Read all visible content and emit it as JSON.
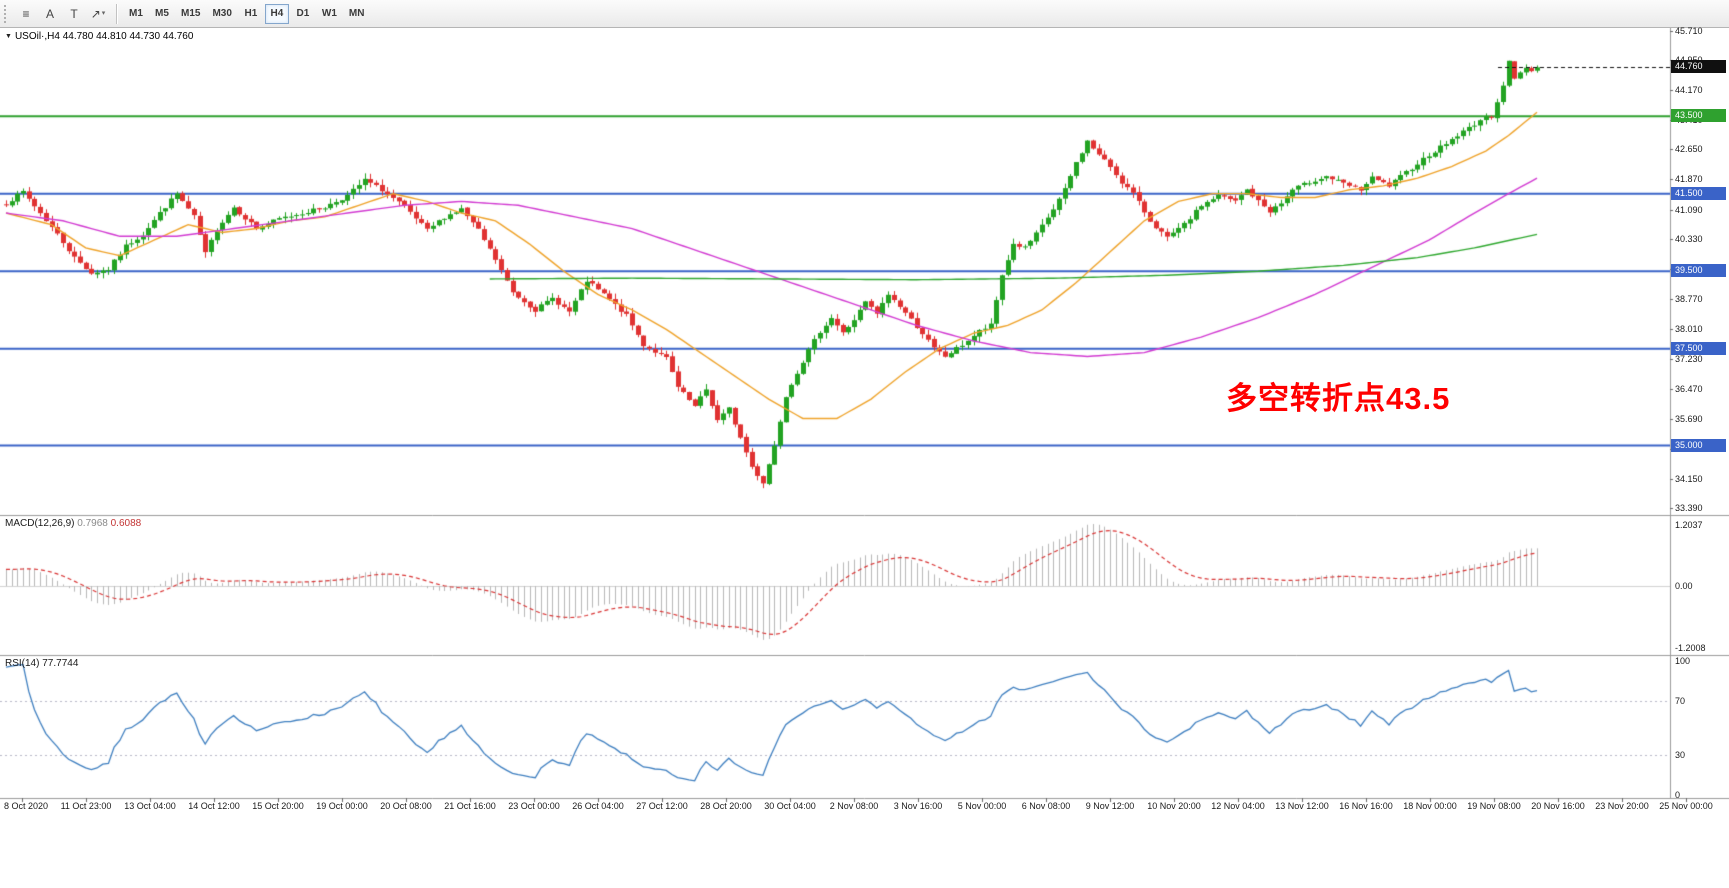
{
  "toolbar": {
    "tools": [
      {
        "id": "fibonacci-retracement",
        "glyph": "≡",
        "dropdown": false
      },
      {
        "id": "text-label",
        "glyph": "A",
        "dropdown": false
      },
      {
        "id": "text-box",
        "glyph": "T",
        "dropdown": false
      },
      {
        "id": "arrow-tool",
        "glyph": "↗",
        "dropdown": true
      }
    ],
    "timeframes": [
      "M1",
      "M5",
      "M15",
      "M30",
      "H1",
      "H4",
      "D1",
      "W1",
      "MN"
    ],
    "active_timeframe": "H4"
  },
  "chart": {
    "header": "USOil·,H4 44.780 44.810 44.730 44.760",
    "symbol": "USOil",
    "period": "H4",
    "ohlc": {
      "open": "44.780",
      "high": "44.810",
      "low": "44.730",
      "close": "44.760"
    },
    "annotation": {
      "text": "多空转折点43.5"
    },
    "current_price": {
      "value": 44.76,
      "label": "44.760"
    },
    "levels": [
      {
        "price": 43.5,
        "label": "43.500",
        "color": "#2fa12f"
      },
      {
        "price": 41.5,
        "label": "41.500",
        "color": "#3a63c8"
      },
      {
        "price": 39.5,
        "label": "39.500",
        "color": "#3a63c8"
      },
      {
        "price": 37.5,
        "label": "37.500",
        "color": "#3a63c8"
      },
      {
        "price": 35.0,
        "label": "35.000",
        "color": "#3a63c8"
      }
    ]
  },
  "macd": {
    "label": "MACD(12,26,9)",
    "value_main": "0.7968",
    "value_signal": "0.6088",
    "axis": [
      "1.2037",
      "0.00",
      "-1.2008"
    ]
  },
  "rsi": {
    "label": "RSI(14)",
    "value": "77.7744",
    "axis": [
      {
        "label": "100",
        "value": 100
      },
      {
        "label": "70",
        "value": 70
      },
      {
        "label": "30",
        "value": 30
      },
      {
        "label": "0",
        "value": 0
      }
    ],
    "levels": [
      70,
      30
    ]
  },
  "chart_data": {
    "type": "candlestick",
    "symbol": "USOil",
    "timeframe": "H4",
    "bars": 270,
    "y_range": [
      33.39,
      45.71
    ],
    "y_ticks": [
      "45.710",
      "44.950",
      "44.170",
      "43.410",
      "42.650",
      "41.870",
      "41.090",
      "40.330",
      "39.550",
      "38.770",
      "38.010",
      "37.230",
      "36.470",
      "35.690",
      "34.920",
      "34.150",
      "33.390"
    ],
    "time_labels": [
      "8 Oct 2020",
      "11 Oct 23:00",
      "13 Oct 04:00",
      "14 Oct 12:00",
      "15 Oct 20:00",
      "19 Oct 00:00",
      "20 Oct 08:00",
      "21 Oct 16:00",
      "23 Oct 00:00",
      "26 Oct 04:00",
      "27 Oct 12:00",
      "28 Oct 20:00",
      "30 Oct 04:00",
      "2 Nov 08:00",
      "3 Nov 16:00",
      "5 Nov 00:00",
      "6 Nov 08:00",
      "9 Nov 12:00",
      "10 Nov 20:00",
      "12 Nov 04:00",
      "13 Nov 12:00",
      "16 Nov 16:00",
      "18 Nov 00:00",
      "19 Nov 08:00",
      "20 Nov 16:00",
      "23 Nov 20:00",
      "25 Nov 00:00"
    ],
    "close_path": [
      [
        0,
        41.25
      ],
      [
        3,
        41.55
      ],
      [
        6,
        41.0
      ],
      [
        9,
        40.45
      ],
      [
        12,
        39.85
      ],
      [
        15,
        39.45
      ],
      [
        18,
        39.55
      ],
      [
        21,
        40.15
      ],
      [
        24,
        40.45
      ],
      [
        27,
        41.0
      ],
      [
        30,
        41.5
      ],
      [
        33,
        40.9
      ],
      [
        35,
        39.95
      ],
      [
        37,
        40.6
      ],
      [
        40,
        41.15
      ],
      [
        44,
        40.6
      ],
      [
        48,
        40.85
      ],
      [
        52,
        41.0
      ],
      [
        56,
        41.15
      ],
      [
        60,
        41.45
      ],
      [
        63,
        41.85
      ],
      [
        66,
        41.6
      ],
      [
        70,
        41.15
      ],
      [
        74,
        40.55
      ],
      [
        77,
        40.9
      ],
      [
        80,
        41.1
      ],
      [
        83,
        40.55
      ],
      [
        86,
        39.8
      ],
      [
        89,
        38.95
      ],
      [
        93,
        38.5
      ],
      [
        96,
        38.8
      ],
      [
        99,
        38.45
      ],
      [
        102,
        39.25
      ],
      [
        105,
        38.9
      ],
      [
        109,
        38.35
      ],
      [
        112,
        37.6
      ],
      [
        116,
        37.25
      ],
      [
        118,
        36.5
      ],
      [
        121,
        36.0
      ],
      [
        123,
        36.45
      ],
      [
        125,
        35.65
      ],
      [
        127,
        35.95
      ],
      [
        129,
        35.2
      ],
      [
        131,
        34.45
      ],
      [
        133,
        34.05
      ],
      [
        135,
        35.0
      ],
      [
        137,
        36.3
      ],
      [
        139,
        36.9
      ],
      [
        141,
        37.45
      ],
      [
        143,
        37.95
      ],
      [
        145,
        38.3
      ],
      [
        147,
        37.9
      ],
      [
        149,
        38.25
      ],
      [
        151,
        38.7
      ],
      [
        153,
        38.4
      ],
      [
        155,
        38.9
      ],
      [
        157,
        38.6
      ],
      [
        159,
        38.25
      ],
      [
        161,
        37.9
      ],
      [
        163,
        37.5
      ],
      [
        165,
        37.3
      ],
      [
        168,
        37.6
      ],
      [
        171,
        37.95
      ],
      [
        173,
        38.1
      ],
      [
        175,
        39.4
      ],
      [
        177,
        40.2
      ],
      [
        179,
        40.1
      ],
      [
        181,
        40.45
      ],
      [
        184,
        41.1
      ],
      [
        186,
        41.6
      ],
      [
        188,
        42.3
      ],
      [
        190,
        42.85
      ],
      [
        192,
        42.5
      ],
      [
        194,
        42.2
      ],
      [
        196,
        41.8
      ],
      [
        198,
        41.5
      ],
      [
        201,
        40.8
      ],
      [
        204,
        40.35
      ],
      [
        207,
        40.7
      ],
      [
        210,
        41.2
      ],
      [
        213,
        41.45
      ],
      [
        216,
        41.3
      ],
      [
        218,
        41.6
      ],
      [
        220,
        41.3
      ],
      [
        222,
        41.05
      ],
      [
        224,
        41.25
      ],
      [
        226,
        41.6
      ],
      [
        229,
        41.8
      ],
      [
        232,
        41.95
      ],
      [
        235,
        41.75
      ],
      [
        238,
        41.6
      ],
      [
        240,
        41.9
      ],
      [
        243,
        41.7
      ],
      [
        246,
        42.05
      ],
      [
        249,
        42.4
      ],
      [
        252,
        42.7
      ],
      [
        255,
        43.0
      ],
      [
        257,
        43.2
      ],
      [
        259,
        43.4
      ],
      [
        261,
        43.5
      ],
      [
        263,
        44.3
      ],
      [
        264,
        44.9
      ],
      [
        265,
        44.45
      ],
      [
        266,
        44.65
      ],
      [
        267,
        44.75
      ],
      [
        268,
        44.7
      ],
      [
        269,
        44.76
      ]
    ],
    "ma_fast": [
      [
        0,
        41.0
      ],
      [
        8,
        40.7
      ],
      [
        14,
        40.1
      ],
      [
        20,
        39.9
      ],
      [
        26,
        40.3
      ],
      [
        32,
        40.7
      ],
      [
        38,
        40.5
      ],
      [
        44,
        40.6
      ],
      [
        50,
        40.8
      ],
      [
        56,
        40.9
      ],
      [
        62,
        41.2
      ],
      [
        68,
        41.5
      ],
      [
        74,
        41.3
      ],
      [
        80,
        41.0
      ],
      [
        86,
        40.8
      ],
      [
        92,
        40.2
      ],
      [
        98,
        39.5
      ],
      [
        104,
        38.9
      ],
      [
        110,
        38.5
      ],
      [
        116,
        38.0
      ],
      [
        122,
        37.4
      ],
      [
        128,
        36.8
      ],
      [
        134,
        36.2
      ],
      [
        140,
        35.7
      ],
      [
        146,
        35.7
      ],
      [
        152,
        36.2
      ],
      [
        158,
        36.9
      ],
      [
        164,
        37.5
      ],
      [
        170,
        37.9
      ],
      [
        176,
        38.1
      ],
      [
        182,
        38.5
      ],
      [
        188,
        39.2
      ],
      [
        194,
        40.0
      ],
      [
        200,
        40.8
      ],
      [
        206,
        41.3
      ],
      [
        212,
        41.5
      ],
      [
        218,
        41.5
      ],
      [
        224,
        41.4
      ],
      [
        230,
        41.4
      ],
      [
        236,
        41.6
      ],
      [
        242,
        41.7
      ],
      [
        248,
        41.9
      ],
      [
        254,
        42.2
      ],
      [
        260,
        42.6
      ],
      [
        264,
        43.0
      ],
      [
        269,
        43.6
      ]
    ],
    "ma_mid": [
      [
        0,
        41.0
      ],
      [
        10,
        40.8
      ],
      [
        20,
        40.4
      ],
      [
        30,
        40.4
      ],
      [
        40,
        40.6
      ],
      [
        50,
        40.8
      ],
      [
        60,
        41.0
      ],
      [
        70,
        41.2
      ],
      [
        80,
        41.3
      ],
      [
        90,
        41.2
      ],
      [
        100,
        40.9
      ],
      [
        110,
        40.6
      ],
      [
        120,
        40.1
      ],
      [
        130,
        39.6
      ],
      [
        140,
        39.1
      ],
      [
        150,
        38.6
      ],
      [
        160,
        38.1
      ],
      [
        170,
        37.7
      ],
      [
        180,
        37.4
      ],
      [
        190,
        37.3
      ],
      [
        200,
        37.4
      ],
      [
        210,
        37.8
      ],
      [
        220,
        38.3
      ],
      [
        230,
        38.9
      ],
      [
        240,
        39.6
      ],
      [
        250,
        40.3
      ],
      [
        258,
        41.0
      ],
      [
        264,
        41.5
      ],
      [
        269,
        41.9
      ]
    ],
    "ma_slow": [
      [
        85,
        39.3
      ],
      [
        110,
        39.32
      ],
      [
        135,
        39.3
      ],
      [
        160,
        39.28
      ],
      [
        185,
        39.32
      ],
      [
        205,
        39.4
      ],
      [
        220,
        39.5
      ],
      [
        235,
        39.65
      ],
      [
        248,
        39.85
      ],
      [
        258,
        40.1
      ],
      [
        269,
        40.45
      ]
    ],
    "indicators": [
      {
        "name": "MACD",
        "params": [
          12,
          26,
          9
        ]
      },
      {
        "name": "RSI",
        "params": [
          14
        ]
      }
    ]
  },
  "colors": {
    "bull": "#22a322",
    "bear": "#e03232",
    "ma_fast": "#efa32a",
    "ma_mid": "#d23ad2",
    "ma_slow": "#2fa82f",
    "macd_bar": "#b8b8b8",
    "macd_signal": "#d93434",
    "rsi_line": "#3e7fc0",
    "price_line": "#101010",
    "axis_line": "#9a9a9a",
    "annotation": "#ff0000"
  }
}
